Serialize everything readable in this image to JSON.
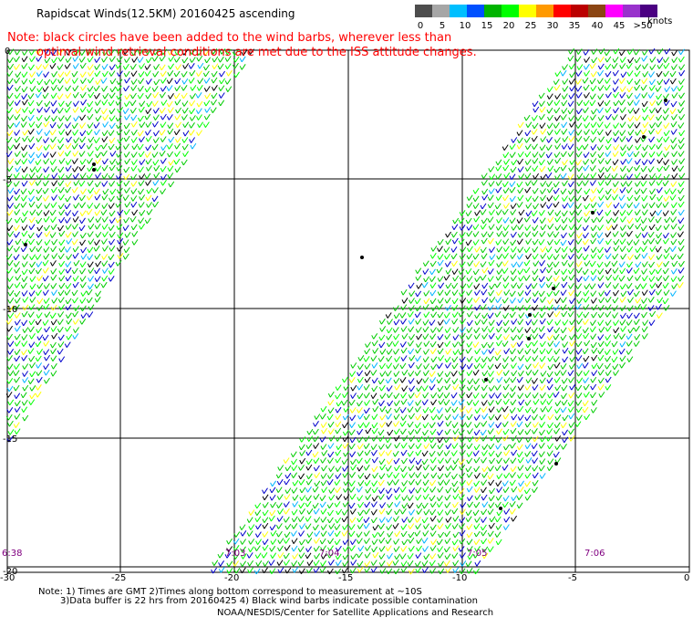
{
  "title": "Rapidscat Winds(12.5KM) 20160425 ascending",
  "note": {
    "line1": "Note: black circles have been added to the wind barbs, wherever less than",
    "line2": "optimal wind retrieval conditions are met due to the ISS attitude changes."
  },
  "color_scale": {
    "labels": [
      "0",
      "5",
      "10",
      "15",
      "20",
      "25",
      "30",
      "35",
      "40",
      "45",
      ">50"
    ],
    "colors": [
      "#4d4d4d",
      "#a6a6a6",
      "#00bfff",
      "#0050ff",
      "#00b400",
      "#00ff00",
      "#ffff00",
      "#ff9900",
      "#ff0000",
      "#bb0000",
      "#8b4513",
      "#ff00ff",
      "#9932cc",
      "#4b0082"
    ],
    "units": "knots"
  },
  "axes": {
    "x_ticks": [
      "-30",
      "-25",
      "-20",
      "-15",
      "-10",
      "-5",
      "0"
    ],
    "y_ticks": [
      "0",
      "-5",
      "-10",
      "-15",
      "-20"
    ]
  },
  "pass_times": [
    "6:38",
    "7:03",
    "7:04",
    "7:05",
    "7:06"
  ],
  "footer": {
    "line1": "Note: 1) Times are GMT 2)Times along bottom correspond to measurement at ~10S",
    "line2": "3)Data buffer is 22 hrs from 20160425 4) Black wind barbs indicate possible contamination",
    "credit": "NOAA/NESDIS/Center for Satellite Applications and Research"
  }
}
